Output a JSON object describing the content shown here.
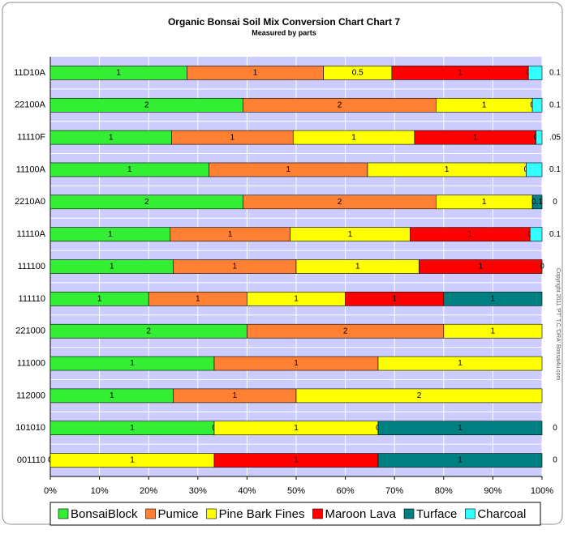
{
  "chart_data": {
    "type": "bar",
    "orientation": "horizontal",
    "stacked": "percent",
    "title": "Organic Bonsai Soil Mix Conversion Chart Chart 7",
    "subtitle": "Measured by parts",
    "watermark": "Copyright 2011 'PT' T.C.'DRA' Bonsai4u.com",
    "categories": [
      "11D10A",
      "22100A",
      "11110F",
      "11100A",
      "2210A0",
      "11110A",
      "111100",
      "111110",
      "221000",
      "111000",
      "112000",
      "101010",
      "001110"
    ],
    "series": [
      {
        "name": "BonsaiBlock",
        "color": "#33ee33",
        "values": [
          1,
          2,
          1,
          1,
          2,
          1,
          1,
          1,
          2,
          1,
          1,
          1,
          0
        ]
      },
      {
        "name": "Pumice",
        "color": "#ff8033",
        "values": [
          1,
          2,
          1,
          1,
          2,
          1,
          1,
          1,
          2,
          1,
          1,
          0,
          0
        ]
      },
      {
        "name": "Pine Bark Fines",
        "color": "#ffff00",
        "values": [
          0.5,
          1,
          1,
          1,
          1,
          1,
          1,
          1,
          1,
          1,
          2,
          1,
          1
        ]
      },
      {
        "name": "Maroon Lava",
        "color": "#ff0000",
        "values": [
          1,
          null,
          1,
          null,
          null,
          1,
          1,
          1,
          null,
          null,
          null,
          0,
          1
        ]
      },
      {
        "name": "Turface",
        "color": "#008080",
        "values": [
          0,
          0,
          0,
          0,
          0.1,
          0,
          0,
          1,
          null,
          null,
          null,
          1,
          1
        ]
      },
      {
        "name": "Charcoal",
        "color": "#33ffff",
        "values": [
          0.1,
          0.1,
          0.05,
          0.1,
          0,
          0.1,
          null,
          null,
          null,
          null,
          null,
          0,
          0
        ],
        "value_labels": [
          "0.1",
          "0.1",
          ".05",
          "0.1",
          "0",
          "0.1",
          null,
          null,
          null,
          null,
          null,
          "0",
          "0"
        ]
      }
    ],
    "xlim": [
      0,
      100
    ],
    "xticks": [
      {
        "value": 0,
        "label": "0%"
      },
      {
        "value": 10,
        "label": "10%"
      },
      {
        "value": 20,
        "label": "20%"
      },
      {
        "value": 30,
        "label": "30%"
      },
      {
        "value": 40,
        "label": "40%"
      },
      {
        "value": 50,
        "label": "50%"
      },
      {
        "value": 60,
        "label": "60%"
      },
      {
        "value": 70,
        "label": "70%"
      },
      {
        "value": 80,
        "label": "80%"
      },
      {
        "value": 90,
        "label": "90%"
      },
      {
        "value": 100,
        "label": "100%"
      }
    ],
    "grid": true,
    "legend": "bottom"
  }
}
